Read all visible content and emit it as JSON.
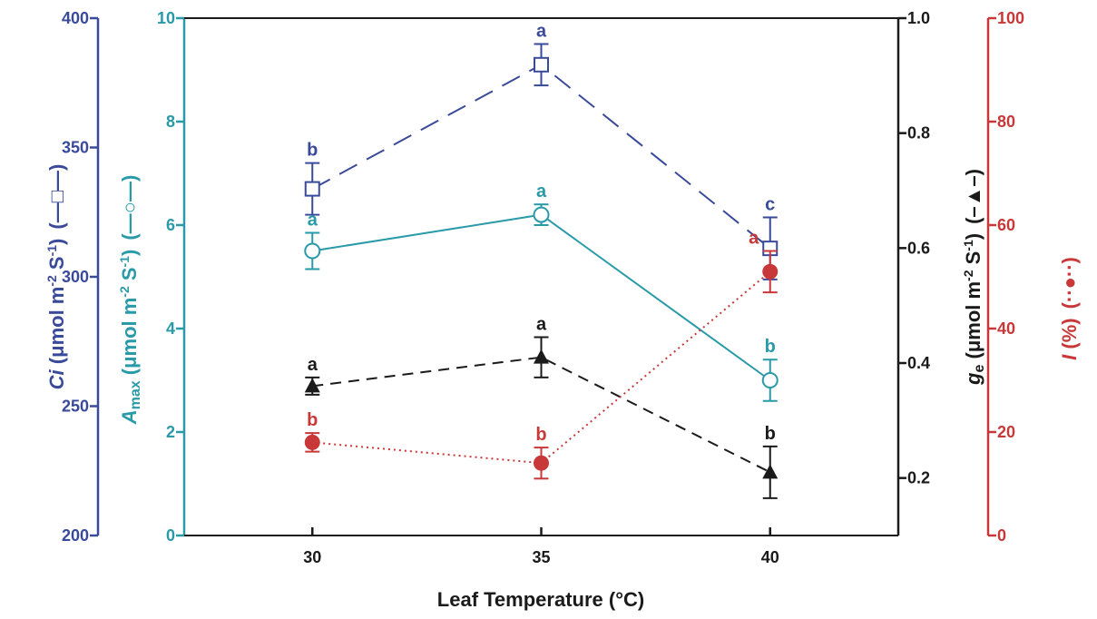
{
  "chart_data": {
    "type": "line",
    "xlabel": "Leaf Temperature (°C)",
    "x": [
      30,
      35,
      40
    ],
    "xticks": [
      "30",
      "35",
      "40"
    ],
    "xlim": [
      27.2,
      42.8
    ],
    "axes": {
      "ci": {
        "color": "#3a4a9a",
        "ylim": [
          200,
          400
        ],
        "ticks": [
          "200",
          "250",
          "300",
          "350",
          "400"
        ],
        "label_main": "Ci",
        "label_rest": " (μmol m",
        "sup1": "-2",
        "mid": " S",
        "sup2": "-1",
        "end": ")",
        "legend": "(—□—)"
      },
      "amax": {
        "color": "#2a9aa8",
        "ylim": [
          0,
          10
        ],
        "ticks": [
          "0",
          "2",
          "4",
          "6",
          "8",
          "10"
        ],
        "label_main": "A",
        "label_sub": "max",
        "label_rest": " (μmol m",
        "sup1": "-2",
        "mid": " S",
        "sup2": "-1",
        "end": ")",
        "legend": "(—○—)"
      },
      "ge": {
        "color": "#1a1a1a",
        "ylim": [
          0.1,
          1.0
        ],
        "ticks": [
          "0.2",
          "0.4",
          "0.6",
          "0.8",
          "1.0"
        ],
        "label_main": "g",
        "label_sub": "e",
        "label_rest": " (μmol m",
        "sup1": "-2",
        "mid": " S",
        "sup2": "-1",
        "end": ")",
        "legend": "(–▲–)"
      },
      "i": {
        "color": "#c83838",
        "ylim": [
          0,
          100
        ],
        "ticks": [
          "0",
          "20",
          "40",
          "60",
          "80",
          "100"
        ],
        "label_main": "I",
        "label_rest": " (%)",
        "legend": "(··●··)"
      }
    },
    "series": [
      {
        "axis": "ci",
        "marker": "open-square",
        "line": "long-dash",
        "values": [
          334,
          382,
          311
        ],
        "errors": [
          10,
          8,
          12
        ],
        "letters": [
          "b",
          "a",
          "c"
        ]
      },
      {
        "axis": "amax",
        "marker": "open-circle",
        "line": "solid",
        "values": [
          5.5,
          6.2,
          3.0
        ],
        "errors": [
          0.35,
          0.2,
          0.4
        ],
        "letters": [
          "a",
          "a",
          "b"
        ]
      },
      {
        "axis": "ge",
        "marker": "filled-triangle",
        "line": "dash",
        "values": [
          0.36,
          0.41,
          0.21
        ],
        "errors": [
          0.015,
          0.035,
          0.045
        ],
        "letters": [
          "a",
          "a",
          "b"
        ]
      },
      {
        "axis": "i",
        "marker": "filled-circle",
        "line": "dotted",
        "values": [
          18,
          14,
          51
        ],
        "errors": [
          1.8,
          3.0,
          4.0
        ],
        "letters": [
          "b",
          "b",
          "a"
        ]
      }
    ]
  }
}
